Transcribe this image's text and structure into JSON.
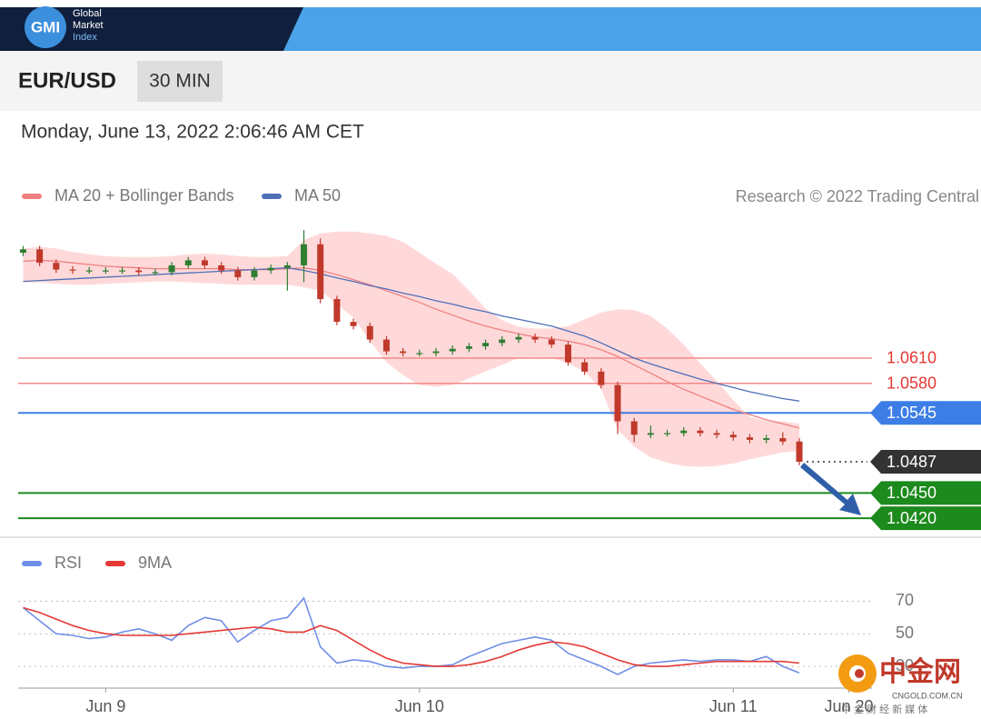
{
  "header": {
    "logo": "GMI",
    "brand_lines": [
      "Global",
      "Market",
      "Index"
    ],
    "symbol": "EUR/USD",
    "timeframe": "30 MIN",
    "date": "Monday, June 13, 2022 2:06:46 AM CET"
  },
  "watermark": {
    "name": "中金网",
    "url": "CNGOLD.COM.CN",
    "tagline": "中 金 财 经 新 媒 体"
  },
  "chart_data": [
    {
      "type": "candlestick",
      "annotation": "Research © 2022 Trading Central",
      "up_color": "#2e7d32",
      "down_color": "#c0392b",
      "xlim": [
        -0.3,
        52.5
      ],
      "ylim": [
        1.0404,
        1.0776
      ],
      "ohlc": [
        [
          1.0735,
          1.0743,
          1.0731,
          1.0739
        ],
        [
          1.0739,
          1.0743,
          1.0719,
          1.0723
        ],
        [
          1.0723,
          1.0727,
          1.0711,
          1.0715
        ],
        [
          1.0715,
          1.0719,
          1.071,
          1.0714
        ],
        [
          1.0714,
          1.0718,
          1.071,
          1.0714
        ],
        [
          1.0714,
          1.0718,
          1.071,
          1.0714
        ],
        [
          1.0714,
          1.0718,
          1.071,
          1.0714
        ],
        [
          1.0714,
          1.0718,
          1.0708,
          1.0712
        ],
        [
          1.0712,
          1.0716,
          1.0708,
          1.0712
        ],
        [
          1.0712,
          1.0724,
          1.0708,
          1.072
        ],
        [
          1.072,
          1.073,
          1.0716,
          1.0726
        ],
        [
          1.0726,
          1.073,
          1.0716,
          1.072
        ],
        [
          1.072,
          1.0724,
          1.071,
          1.0714
        ],
        [
          1.0714,
          1.0718,
          1.0702,
          1.0706
        ],
        [
          1.0706,
          1.0718,
          1.0702,
          1.0714
        ],
        [
          1.0714,
          1.0721,
          1.071,
          1.0717
        ],
        [
          1.0717,
          1.0724,
          1.069,
          1.072
        ],
        [
          1.072,
          1.0762,
          1.07,
          1.0745
        ],
        [
          1.0745,
          1.0752,
          1.0675,
          1.068
        ],
        [
          1.068,
          1.0684,
          1.0649,
          1.0653
        ],
        [
          1.0653,
          1.0657,
          1.0644,
          1.0648
        ],
        [
          1.0648,
          1.0652,
          1.0628,
          1.0632
        ],
        [
          1.0632,
          1.0636,
          1.0614,
          1.0618
        ],
        [
          1.0618,
          1.0622,
          1.0612,
          1.0616
        ],
        [
          1.0616,
          1.062,
          1.0612,
          1.0616
        ],
        [
          1.0616,
          1.0622,
          1.0612,
          1.0618
        ],
        [
          1.0618,
          1.0625,
          1.0614,
          1.0621
        ],
        [
          1.0621,
          1.0628,
          1.0617,
          1.0624
        ],
        [
          1.0624,
          1.0632,
          1.062,
          1.0628
        ],
        [
          1.0628,
          1.0636,
          1.0624,
          1.0632
        ],
        [
          1.0632,
          1.0639,
          1.0628,
          1.0635
        ],
        [
          1.0635,
          1.0639,
          1.0628,
          1.0632
        ],
        [
          1.0632,
          1.0636,
          1.0622,
          1.0626
        ],
        [
          1.0626,
          1.063,
          1.0601,
          1.0605
        ],
        [
          1.0605,
          1.0609,
          1.059,
          1.0594
        ],
        [
          1.0594,
          1.0598,
          1.0574,
          1.0578
        ],
        [
          1.0578,
          1.0582,
          1.052,
          1.0535
        ],
        [
          1.0535,
          1.0539,
          1.051,
          1.0519
        ],
        [
          1.0519,
          1.053,
          1.0515,
          1.0521
        ],
        [
          1.0521,
          1.0525,
          1.0517,
          1.0521
        ],
        [
          1.0521,
          1.0528,
          1.0517,
          1.0524
        ],
        [
          1.0524,
          1.0528,
          1.0517,
          1.0521
        ],
        [
          1.0521,
          1.0525,
          1.0515,
          1.0519
        ],
        [
          1.0519,
          1.0523,
          1.0512,
          1.0516
        ],
        [
          1.0516,
          1.052,
          1.0509,
          1.0513
        ],
        [
          1.0513,
          1.0519,
          1.0509,
          1.0515
        ],
        [
          1.0515,
          1.0522,
          1.0507,
          1.0511
        ],
        [
          1.0511,
          1.0515,
          1.0483,
          1.0487
        ]
      ],
      "series": [
        {
          "name": "MA 20 + Bollinger Bands",
          "color": "#f08080",
          "band_color": "#ffd9d9",
          "values": [
            1.0725,
            1.0726,
            1.0725,
            1.0723,
            1.0721,
            1.0719,
            1.0718,
            1.0717,
            1.0716,
            1.0716,
            1.0716,
            1.0716,
            1.0716,
            1.0715,
            1.0715,
            1.0715,
            1.0716,
            1.0717,
            1.0714,
            1.0709,
            1.0703,
            1.0697,
            1.069,
            1.0683,
            1.0676,
            1.0668,
            1.0661,
            1.0654,
            1.0648,
            1.0643,
            1.0639,
            1.0635,
            1.0633,
            1.063,
            1.0626,
            1.062,
            1.0612,
            1.0602,
            1.0592,
            1.0582,
            1.0573,
            1.0565,
            1.0557,
            1.0549,
            1.0543,
            1.0537,
            1.0532,
            1.0527
          ],
          "upper": [
            1.074,
            1.0742,
            1.074,
            1.0736,
            1.0733,
            1.0731,
            1.073,
            1.073,
            1.073,
            1.0731,
            1.0733,
            1.0734,
            1.0733,
            1.0731,
            1.073,
            1.073,
            1.0731,
            1.075,
            1.0758,
            1.076,
            1.076,
            1.0758,
            1.0755,
            1.0748,
            1.0735,
            1.0722,
            1.071,
            1.069,
            1.0669,
            1.0655,
            1.0647,
            1.0645,
            1.0645,
            1.0648,
            1.0656,
            1.0664,
            1.0668,
            1.0667,
            1.066,
            1.0645,
            1.0626,
            1.0604,
            1.0583,
            1.056,
            1.054,
            1.0536,
            1.0535,
            1.0532
          ],
          "lower": [
            1.07,
            1.07,
            1.0698,
            1.0697,
            1.0697,
            1.0698,
            1.0699,
            1.07,
            1.0701,
            1.0701,
            1.07,
            1.0699,
            1.0698,
            1.0697,
            1.0697,
            1.0697,
            1.0697,
            1.0694,
            1.069,
            1.0674,
            1.0658,
            1.063,
            1.0605,
            1.059,
            1.0578,
            1.0576,
            1.0578,
            1.0586,
            1.0594,
            1.0602,
            1.061,
            1.0611,
            1.061,
            1.0604,
            1.0594,
            1.0573,
            1.0525,
            1.0505,
            1.0492,
            1.0486,
            1.0482,
            1.0481,
            1.0482,
            1.0485,
            1.049,
            1.0494,
            1.0498,
            1.05
          ]
        },
        {
          "name": "MA 50",
          "color": "#4f6fb8",
          "values": [
            1.0701,
            1.0702,
            1.0703,
            1.0704,
            1.0705,
            1.0706,
            1.0707,
            1.0708,
            1.0709,
            1.071,
            1.0711,
            1.0712,
            1.0713,
            1.0714,
            1.0715,
            1.0716,
            1.0717,
            1.0714,
            1.071,
            1.0705,
            1.0701,
            1.0696,
            1.0692,
            1.0687,
            1.0683,
            1.0678,
            1.0674,
            1.0669,
            1.0665,
            1.066,
            1.0656,
            1.0652,
            1.0648,
            1.0642,
            1.0636,
            1.0628,
            1.0619,
            1.061,
            1.0603,
            1.0597,
            1.0591,
            1.0585,
            1.058,
            1.0575,
            1.057,
            1.0566,
            1.0562,
            1.0559
          ]
        }
      ],
      "levels": [
        {
          "value": 1.061,
          "label": "1.0610",
          "color": "#f08a8a",
          "text_color": "#e53935",
          "style": "text",
          "line": "full"
        },
        {
          "value": 1.058,
          "label": "1.0580",
          "color": "#f08a8a",
          "text_color": "#e53935",
          "style": "text",
          "line": "full"
        },
        {
          "value": 1.0545,
          "label": "1.0545",
          "color": "#3d7ee6",
          "text_color": "#ffffff",
          "style": "tag",
          "line": "full"
        },
        {
          "value": 1.0487,
          "label": "1.0487",
          "color": "#333333",
          "text_color": "#ffffff",
          "style": "tag",
          "line": "dotted"
        },
        {
          "value": 1.045,
          "label": "1.0450",
          "color": "#1c8a1c",
          "text_color": "#ffffff",
          "style": "tag",
          "line": "full"
        },
        {
          "value": 1.042,
          "label": "1.0420",
          "color": "#1c8a1c",
          "text_color": "#ffffff",
          "style": "tag",
          "line": "full"
        }
      ]
    },
    {
      "type": "line",
      "xlim": [
        -0.3,
        52.5
      ],
      "ylim": [
        20,
        78
      ],
      "yticks": [
        70,
        50,
        30
      ],
      "grid": true,
      "xticks": [
        {
          "value": 5,
          "label": "Jun 9"
        },
        {
          "value": 24,
          "label": "Jun 10"
        },
        {
          "value": 43,
          "label": "Jun 11"
        },
        {
          "value": 50,
          "label": "Jun 20"
        }
      ],
      "series": [
        {
          "name": "RSI",
          "color": "#6f8fe6",
          "values": [
            66,
            58,
            50,
            49,
            47,
            48,
            51,
            53,
            50,
            46,
            55,
            60,
            58,
            45,
            52,
            58,
            60,
            72,
            42,
            32,
            34,
            33,
            30,
            29,
            30,
            30,
            31,
            36,
            40,
            44,
            46,
            48,
            46,
            38,
            34,
            30,
            25,
            30,
            32,
            33,
            34,
            33,
            34,
            34,
            33,
            36,
            30,
            26
          ]
        },
        {
          "name": "9MA",
          "color": "#e53935",
          "values": [
            66,
            63,
            59,
            55,
            52,
            50,
            49,
            49,
            49,
            49,
            50,
            51,
            52,
            53,
            54,
            53,
            51,
            51,
            55,
            52,
            46,
            40,
            35,
            32,
            31,
            30,
            30,
            31,
            33,
            36,
            40,
            43,
            45,
            44,
            42,
            38,
            34,
            31,
            30,
            30,
            31,
            32,
            33,
            33,
            33,
            33,
            33,
            32
          ]
        }
      ]
    }
  ]
}
